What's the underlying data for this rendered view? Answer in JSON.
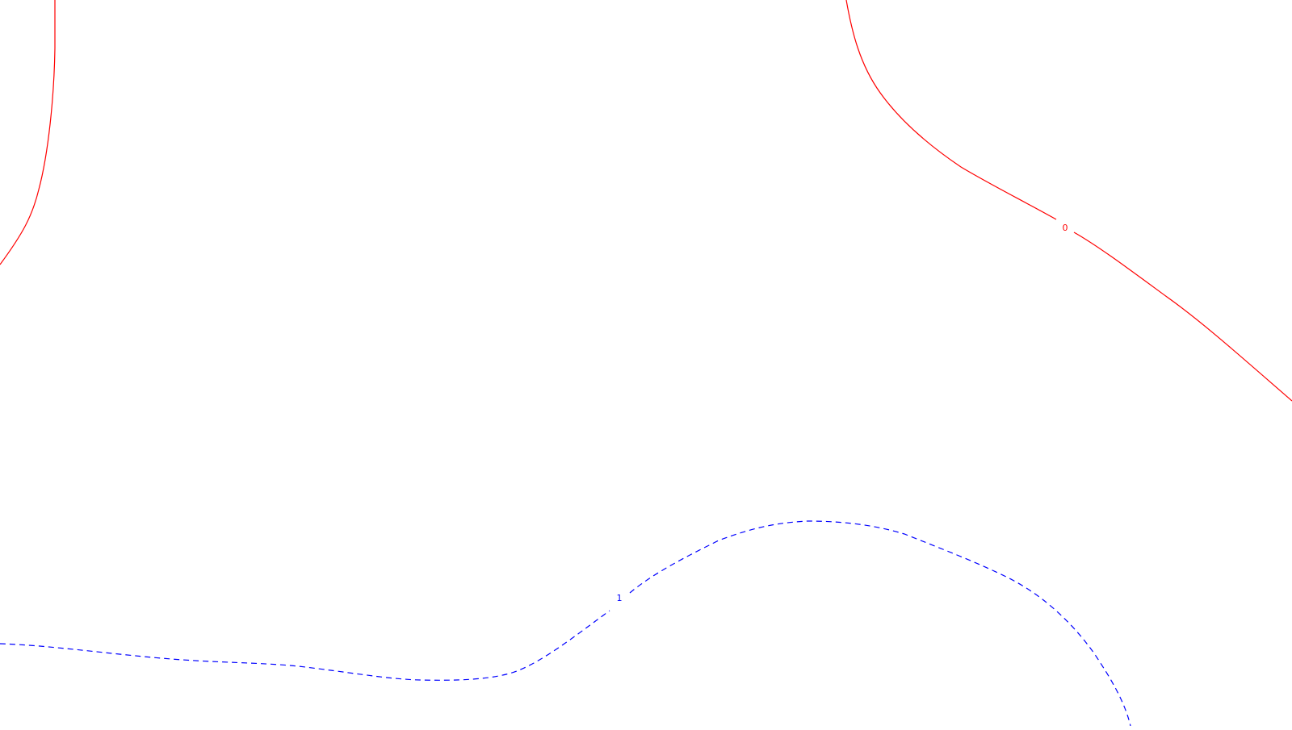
{
  "contours": [
    {
      "id": "contour-0-left",
      "level": "0",
      "color": "#ff0000",
      "style": "solid",
      "labeled": false
    },
    {
      "id": "contour-0-right",
      "level": "0",
      "color": "#ff0000",
      "style": "solid",
      "labeled": true,
      "label": "0"
    },
    {
      "id": "contour-1",
      "level": "1",
      "color": "#0000ff",
      "style": "dashed",
      "labeled": true,
      "label": "1"
    }
  ]
}
